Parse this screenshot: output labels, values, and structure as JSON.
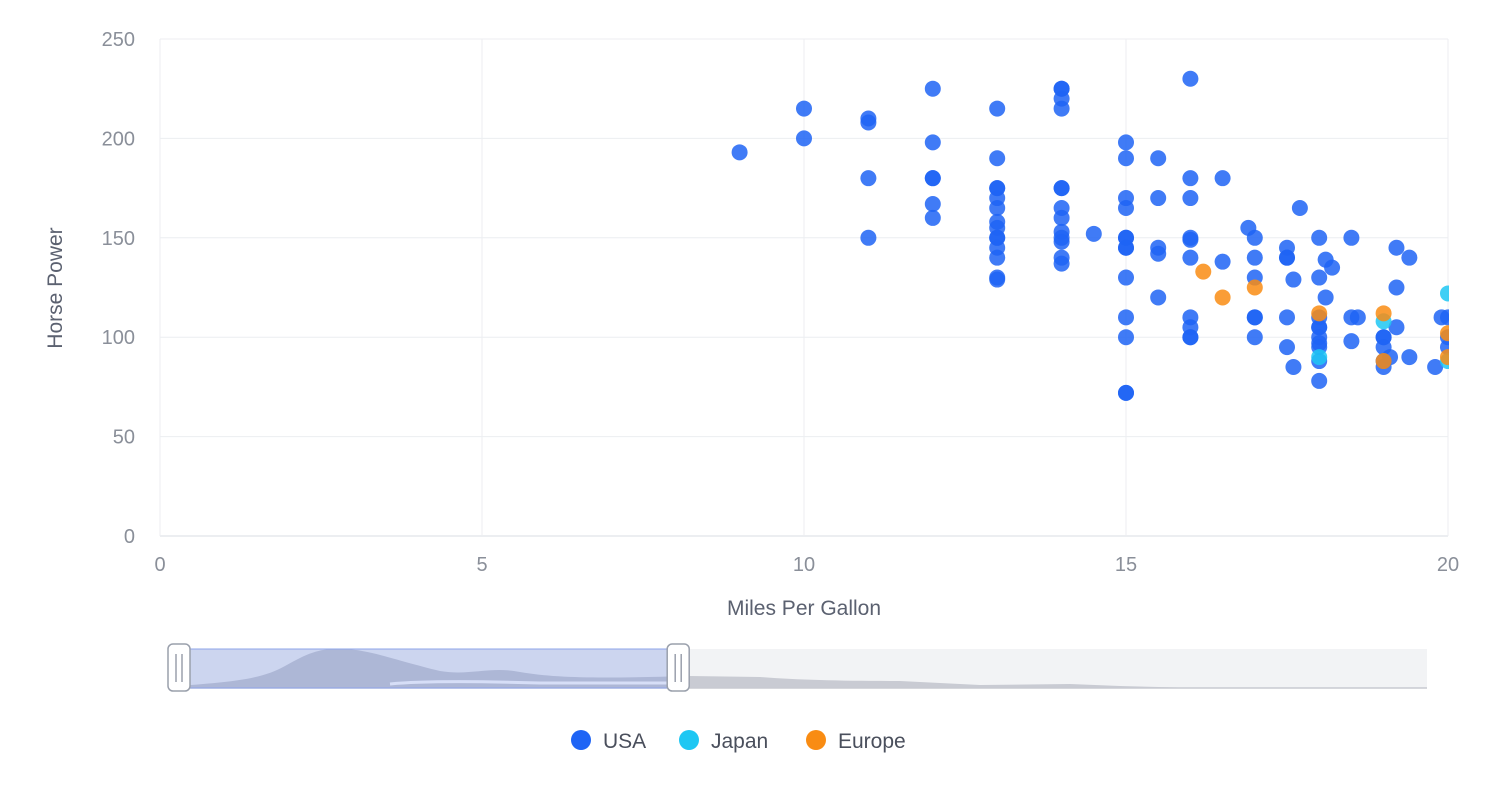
{
  "chart_data": {
    "type": "scatter",
    "xlabel": "Miles Per Gallon",
    "ylabel": "Horse Power",
    "xlim": [
      0,
      20
    ],
    "ylim": [
      0,
      250
    ],
    "x_ticks": [
      0,
      5,
      10,
      15,
      20
    ],
    "y_ticks": [
      0,
      50,
      100,
      150,
      200,
      250
    ],
    "grid": true,
    "legend_position": "bottom-center",
    "data_zoom": {
      "range_percent": [
        0,
        40
      ]
    },
    "series": [
      {
        "name": "USA",
        "color": "#1f64f5",
        "points": [
          [
            9,
            193
          ],
          [
            10,
            215
          ],
          [
            10,
            200
          ],
          [
            11,
            210
          ],
          [
            11,
            208
          ],
          [
            11,
            180
          ],
          [
            11,
            150
          ],
          [
            12,
            225
          ],
          [
            12,
            198
          ],
          [
            12,
            180
          ],
          [
            12,
            180
          ],
          [
            12,
            167
          ],
          [
            12,
            160
          ],
          [
            13,
            215
          ],
          [
            13,
            190
          ],
          [
            13,
            175
          ],
          [
            13,
            175
          ],
          [
            13,
            170
          ],
          [
            13,
            165
          ],
          [
            13,
            158
          ],
          [
            13,
            155
          ],
          [
            13,
            150
          ],
          [
            13,
            150
          ],
          [
            13,
            145
          ],
          [
            13,
            140
          ],
          [
            13,
            130
          ],
          [
            13,
            129
          ],
          [
            14,
            225
          ],
          [
            14,
            225
          ],
          [
            14,
            220
          ],
          [
            14,
            215
          ],
          [
            14,
            175
          ],
          [
            14,
            175
          ],
          [
            14,
            165
          ],
          [
            14,
            160
          ],
          [
            14,
            153
          ],
          [
            14,
            150
          ],
          [
            14,
            148
          ],
          [
            14,
            140
          ],
          [
            14,
            137
          ],
          [
            14.5,
            152
          ],
          [
            15,
            198
          ],
          [
            15,
            190
          ],
          [
            15,
            170
          ],
          [
            15,
            165
          ],
          [
            15,
            150
          ],
          [
            15,
            150
          ],
          [
            15,
            145
          ],
          [
            15,
            145
          ],
          [
            15,
            130
          ],
          [
            15,
            110
          ],
          [
            15,
            100
          ],
          [
            15,
            72
          ],
          [
            15,
            72
          ],
          [
            15.5,
            190
          ],
          [
            15.5,
            170
          ],
          [
            15.5,
            145
          ],
          [
            15.5,
            142
          ],
          [
            15.5,
            120
          ],
          [
            16,
            230
          ],
          [
            16,
            180
          ],
          [
            16,
            170
          ],
          [
            16,
            150
          ],
          [
            16,
            149
          ],
          [
            16,
            140
          ],
          [
            16,
            110
          ],
          [
            16,
            105
          ],
          [
            16,
            100
          ],
          [
            16,
            100
          ],
          [
            16.5,
            180
          ],
          [
            16.5,
            138
          ],
          [
            16.9,
            155
          ],
          [
            17,
            150
          ],
          [
            17,
            140
          ],
          [
            17,
            130
          ],
          [
            17,
            110
          ],
          [
            17,
            110
          ],
          [
            17,
            100
          ],
          [
            17.5,
            145
          ],
          [
            17.5,
            140
          ],
          [
            17.5,
            140
          ],
          [
            17.5,
            110
          ],
          [
            17.5,
            95
          ],
          [
            17.6,
            129
          ],
          [
            17.6,
            85
          ],
          [
            17.7,
            165
          ],
          [
            18,
            150
          ],
          [
            18,
            130
          ],
          [
            18,
            110
          ],
          [
            18,
            105
          ],
          [
            18,
            105
          ],
          [
            18,
            100
          ],
          [
            18,
            97
          ],
          [
            18,
            95
          ],
          [
            18,
            88
          ],
          [
            18,
            78
          ],
          [
            18.1,
            139
          ],
          [
            18.1,
            120
          ],
          [
            18.2,
            135
          ],
          [
            18.5,
            150
          ],
          [
            18.5,
            110
          ],
          [
            18.5,
            98
          ],
          [
            18.6,
            110
          ],
          [
            19,
            100
          ],
          [
            19,
            100
          ],
          [
            19,
            95
          ],
          [
            19,
            88
          ],
          [
            19,
            85
          ],
          [
            19.1,
            90
          ],
          [
            19.2,
            145
          ],
          [
            19.2,
            125
          ],
          [
            19.2,
            105
          ],
          [
            19.4,
            140
          ],
          [
            19.4,
            90
          ],
          [
            19.8,
            85
          ],
          [
            19.9,
            110
          ],
          [
            20,
            110
          ],
          [
            20,
            100
          ],
          [
            20,
            95
          ]
        ]
      },
      {
        "name": "Japan",
        "color": "#1ec7f3",
        "points": [
          [
            18,
            90
          ],
          [
            19,
            108
          ],
          [
            20,
            122
          ],
          [
            20,
            88
          ]
        ]
      },
      {
        "name": "Europe",
        "color": "#f98c13",
        "points": [
          [
            16.2,
            133
          ],
          [
            16.5,
            120
          ],
          [
            17,
            125
          ],
          [
            18,
            112
          ],
          [
            19,
            112
          ],
          [
            19,
            88
          ],
          [
            20,
            102
          ],
          [
            20,
            90
          ]
        ]
      }
    ]
  }
}
